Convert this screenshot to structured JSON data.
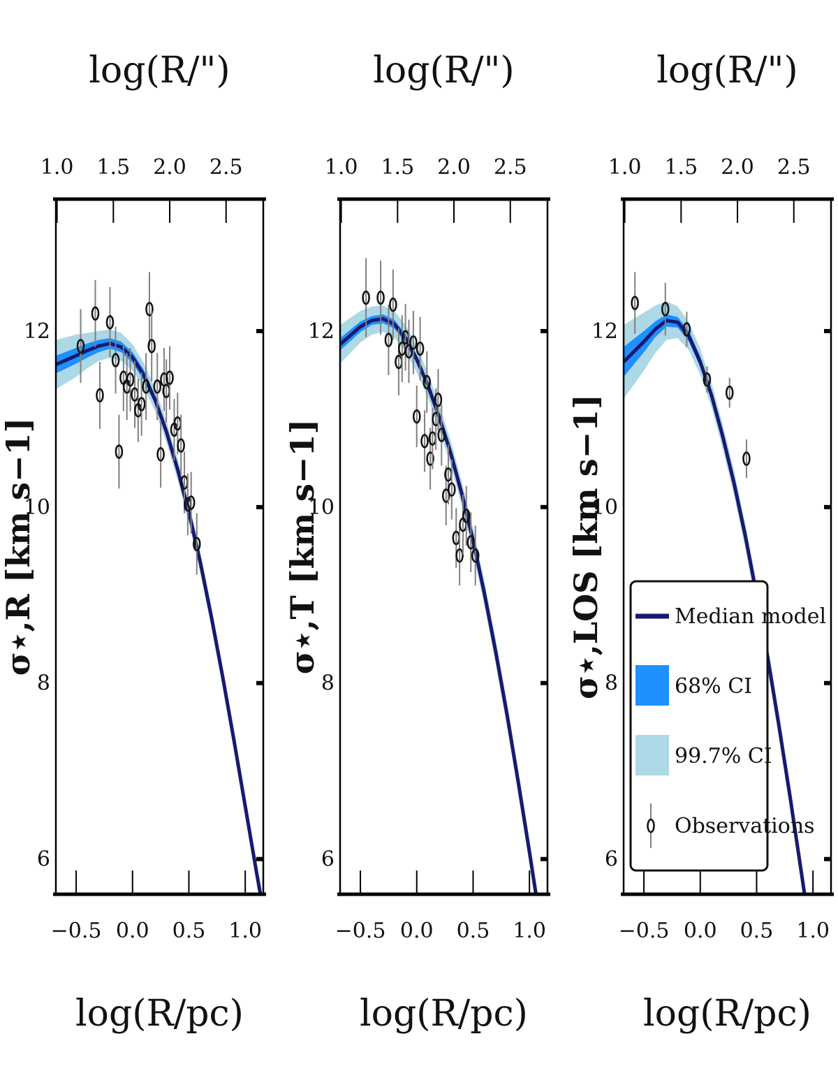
{
  "legend": {
    "panel": 2,
    "position": "lower-right",
    "items": [
      {
        "label": "Median model",
        "kind": "line",
        "color": "#191970"
      },
      {
        "label": "68% CI",
        "kind": "patch",
        "color": "#1e90ff"
      },
      {
        "label": "99.7% CI",
        "kind": "patch",
        "color": "#add8e6"
      },
      {
        "label": "Observations",
        "kind": "errorbar",
        "color": "#000000"
      }
    ]
  },
  "chart_data": [
    {
      "type": "line",
      "name": "sigma-R",
      "ylabel": "σ⋆,R  [km s−1]",
      "xlabel": "log(R/pc)",
      "top_xlabel": "log(R/\")",
      "xlim": [
        -0.68,
        1.16
      ],
      "ylim": [
        5.6,
        13.5
      ],
      "xticks": [
        -0.5,
        0.0,
        0.5,
        1.0
      ],
      "xtick_labels": [
        "−0.5",
        "0.0",
        "0.5",
        "1.0"
      ],
      "top_ticks": [
        1.0,
        1.5,
        2.0,
        2.5
      ],
      "top_tick_labels": [
        "1.0",
        "1.5",
        "2.0",
        "2.5"
      ],
      "top_offset": 1.67,
      "yticks": [
        6,
        8,
        10,
        12
      ],
      "ytick_labels": [
        "6",
        "8",
        "10",
        "12"
      ],
      "model": {
        "x": [
          -0.68,
          -0.5,
          -0.4,
          -0.3,
          -0.2,
          -0.1,
          0.0,
          0.1,
          0.2,
          0.3,
          0.4,
          0.5,
          0.6,
          0.7,
          0.8,
          0.9,
          1.0,
          1.1,
          1.16
        ],
        "median": [
          11.62,
          11.72,
          11.78,
          11.83,
          11.86,
          11.82,
          11.7,
          11.5,
          11.22,
          10.86,
          10.43,
          9.94,
          9.38,
          8.75,
          8.07,
          7.35,
          6.6,
          5.85,
          5.42
        ],
        "ci68": [
          0.1,
          0.09,
          0.08,
          0.07,
          0.06,
          0.06,
          0.06,
          0.06,
          0.05,
          0.05,
          0.05,
          0.05,
          0.05,
          0.05,
          0.05,
          0.05,
          0.05,
          0.05,
          0.05
        ],
        "ci997": [
          0.28,
          0.24,
          0.2,
          0.17,
          0.16,
          0.16,
          0.15,
          0.14,
          0.13,
          0.12,
          0.12,
          0.12,
          0.12,
          0.12,
          0.12,
          0.12,
          0.12,
          0.12,
          0.12
        ]
      },
      "observations": [
        {
          "x": -0.46,
          "y": 11.83,
          "err": 0.42
        },
        {
          "x": -0.33,
          "y": 12.2,
          "err": 0.38
        },
        {
          "x": -0.29,
          "y": 11.27,
          "err": 0.38
        },
        {
          "x": -0.2,
          "y": 12.1,
          "err": 0.4
        },
        {
          "x": -0.15,
          "y": 11.67,
          "err": 0.38
        },
        {
          "x": -0.12,
          "y": 10.63,
          "err": 0.42
        },
        {
          "x": -0.08,
          "y": 11.47,
          "err": 0.38
        },
        {
          "x": -0.05,
          "y": 11.37,
          "err": 0.38
        },
        {
          "x": -0.02,
          "y": 11.45,
          "err": 0.36
        },
        {
          "x": 0.02,
          "y": 11.28,
          "err": 0.38
        },
        {
          "x": 0.05,
          "y": 11.1,
          "err": 0.36
        },
        {
          "x": 0.08,
          "y": 11.17,
          "err": 0.36
        },
        {
          "x": 0.12,
          "y": 11.37,
          "err": 0.38
        },
        {
          "x": 0.15,
          "y": 12.25,
          "err": 0.42
        },
        {
          "x": 0.17,
          "y": 11.83,
          "err": 0.4
        },
        {
          "x": 0.22,
          "y": 11.37,
          "err": 0.38
        },
        {
          "x": 0.25,
          "y": 10.6,
          "err": 0.38
        },
        {
          "x": 0.28,
          "y": 11.45,
          "err": 0.36
        },
        {
          "x": 0.3,
          "y": 11.32,
          "err": 0.36
        },
        {
          "x": 0.33,
          "y": 11.47,
          "err": 0.36
        },
        {
          "x": 0.37,
          "y": 10.88,
          "err": 0.35
        },
        {
          "x": 0.4,
          "y": 10.95,
          "err": 0.35
        },
        {
          "x": 0.43,
          "y": 10.7,
          "err": 0.35
        },
        {
          "x": 0.46,
          "y": 10.28,
          "err": 0.35
        },
        {
          "x": 0.49,
          "y": 10.03,
          "err": 0.35
        },
        {
          "x": 0.52,
          "y": 10.05,
          "err": 0.35
        },
        {
          "x": 0.57,
          "y": 9.58,
          "err": 0.35
        }
      ]
    },
    {
      "type": "line",
      "name": "sigma-T",
      "ylabel": "σ⋆,T  [km s−1]",
      "xlabel": "log(R/pc)",
      "top_xlabel": "log(R/\")",
      "xlim": [
        -0.68,
        1.16
      ],
      "ylim": [
        5.6,
        13.5
      ],
      "xticks": [
        -0.5,
        0.0,
        0.5,
        1.0
      ],
      "xtick_labels": [
        "−0.5",
        "0.0",
        "0.5",
        "1.0"
      ],
      "top_ticks": [
        1.0,
        1.5,
        2.0,
        2.5
      ],
      "top_tick_labels": [
        "1.0",
        "1.5",
        "2.0",
        "2.5"
      ],
      "top_offset": 1.67,
      "yticks": [
        6,
        8,
        10,
        12
      ],
      "ytick_labels": [
        "6",
        "8",
        "10",
        "12"
      ],
      "model": {
        "x": [
          -0.68,
          -0.5,
          -0.4,
          -0.3,
          -0.2,
          -0.1,
          0.0,
          0.1,
          0.2,
          0.3,
          0.4,
          0.5,
          0.6,
          0.7,
          0.8,
          0.9,
          1.0,
          1.1,
          1.16
        ],
        "median": [
          11.85,
          12.05,
          12.12,
          12.14,
          12.08,
          11.92,
          11.68,
          11.38,
          11.02,
          10.62,
          10.15,
          9.62,
          9.02,
          8.36,
          7.65,
          6.88,
          6.08,
          5.25,
          4.75
        ],
        "ci68": [
          0.07,
          0.06,
          0.05,
          0.05,
          0.05,
          0.05,
          0.05,
          0.05,
          0.05,
          0.05,
          0.05,
          0.05,
          0.05,
          0.05,
          0.05,
          0.05,
          0.05,
          0.05,
          0.05
        ],
        "ci997": [
          0.22,
          0.18,
          0.16,
          0.15,
          0.15,
          0.15,
          0.15,
          0.14,
          0.14,
          0.14,
          0.14,
          0.14,
          0.14,
          0.14,
          0.14,
          0.14,
          0.14,
          0.14,
          0.14
        ]
      },
      "observations": [
        {
          "x": -0.45,
          "y": 12.38,
          "err": 0.45
        },
        {
          "x": -0.32,
          "y": 12.38,
          "err": 0.42
        },
        {
          "x": -0.25,
          "y": 11.9,
          "err": 0.4
        },
        {
          "x": -0.21,
          "y": 12.3,
          "err": 0.4
        },
        {
          "x": -0.16,
          "y": 11.65,
          "err": 0.38
        },
        {
          "x": -0.13,
          "y": 11.8,
          "err": 0.38
        },
        {
          "x": -0.1,
          "y": 11.93,
          "err": 0.38
        },
        {
          "x": -0.07,
          "y": 11.77,
          "err": 0.36
        },
        {
          "x": -0.03,
          "y": 11.87,
          "err": 0.36
        },
        {
          "x": 0.0,
          "y": 11.03,
          "err": 0.35
        },
        {
          "x": 0.03,
          "y": 11.8,
          "err": 0.36
        },
        {
          "x": 0.07,
          "y": 10.75,
          "err": 0.35
        },
        {
          "x": 0.09,
          "y": 11.42,
          "err": 0.35
        },
        {
          "x": 0.12,
          "y": 10.55,
          "err": 0.35
        },
        {
          "x": 0.14,
          "y": 10.78,
          "err": 0.35
        },
        {
          "x": 0.17,
          "y": 11.0,
          "err": 0.35
        },
        {
          "x": 0.19,
          "y": 11.22,
          "err": 0.35
        },
        {
          "x": 0.22,
          "y": 10.82,
          "err": 0.35
        },
        {
          "x": 0.26,
          "y": 10.13,
          "err": 0.34
        },
        {
          "x": 0.28,
          "y": 10.37,
          "err": 0.34
        },
        {
          "x": 0.31,
          "y": 10.2,
          "err": 0.34
        },
        {
          "x": 0.35,
          "y": 9.65,
          "err": 0.34
        },
        {
          "x": 0.38,
          "y": 9.45,
          "err": 0.34
        },
        {
          "x": 0.41,
          "y": 9.8,
          "err": 0.34
        },
        {
          "x": 0.44,
          "y": 9.9,
          "err": 0.34
        },
        {
          "x": 0.48,
          "y": 9.6,
          "err": 0.34
        },
        {
          "x": 0.52,
          "y": 9.45,
          "err": 0.34
        }
      ]
    },
    {
      "type": "line",
      "name": "sigma-LOS",
      "ylabel": "σ⋆,LOS  [km s−1]",
      "xlabel": "log(R/pc)",
      "top_xlabel": "log(R/\")",
      "xlim": [
        -0.68,
        1.16
      ],
      "ylim": [
        5.6,
        13.5
      ],
      "xticks": [
        -0.5,
        0.0,
        0.5,
        1.0
      ],
      "xtick_labels": [
        "−0.5",
        "0.0",
        "0.5",
        "1.0"
      ],
      "top_ticks": [
        1.0,
        1.5,
        2.0,
        2.5
      ],
      "top_tick_labels": [
        "1.0",
        "1.5",
        "2.0",
        "2.5"
      ],
      "top_offset": 1.67,
      "yticks": [
        6,
        8,
        10,
        12
      ],
      "ytick_labels": [
        "6",
        "8",
        "10",
        "12"
      ],
      "model": {
        "x": [
          -0.68,
          -0.5,
          -0.4,
          -0.3,
          -0.2,
          -0.1,
          0.0,
          0.1,
          0.2,
          0.3,
          0.4,
          0.5,
          0.6,
          0.7,
          0.8,
          0.9,
          1.0,
          1.1,
          1.16
        ],
        "median": [
          11.65,
          11.88,
          12.02,
          12.12,
          12.1,
          11.94,
          11.65,
          11.27,
          10.8,
          10.27,
          9.67,
          9.0,
          8.28,
          7.5,
          6.68,
          5.82,
          4.95,
          4.05,
          3.5
        ],
        "ci68": [
          0.17,
          0.12,
          0.09,
          0.07,
          0.06,
          0.06,
          0.06,
          0.05,
          0.05,
          0.05,
          0.05,
          0.05,
          0.05,
          0.05,
          0.05,
          0.05,
          0.05,
          0.05,
          0.05
        ],
        "ci997": [
          0.42,
          0.33,
          0.27,
          0.22,
          0.18,
          0.16,
          0.15,
          0.14,
          0.14,
          0.14,
          0.14,
          0.14,
          0.14,
          0.14,
          0.14,
          0.14,
          0.14,
          0.14,
          0.14
        ]
      },
      "observations": [
        {
          "x": -0.58,
          "y": 12.32,
          "err": 0.35
        },
        {
          "x": -0.31,
          "y": 12.25,
          "err": 0.3
        },
        {
          "x": -0.12,
          "y": 12.02,
          "err": 0.2
        },
        {
          "x": 0.06,
          "y": 11.45,
          "err": 0.15
        },
        {
          "x": 0.26,
          "y": 11.3,
          "err": 0.17
        },
        {
          "x": 0.41,
          "y": 10.55,
          "err": 0.22
        }
      ]
    }
  ]
}
